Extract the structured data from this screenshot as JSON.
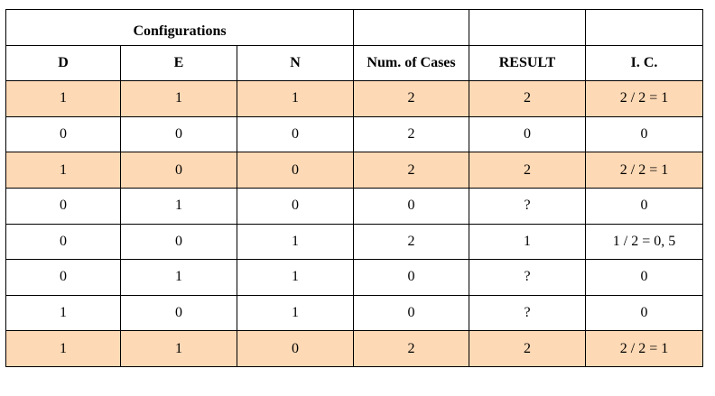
{
  "header": {
    "title": "Configurations",
    "columns": [
      "D",
      "E",
      "N",
      "Num. of Cases",
      "RESULT",
      "I. C."
    ]
  },
  "table": {
    "highlight_color": "#fdd9b5",
    "rows": [
      {
        "highlight": true,
        "cells": [
          "1",
          "1",
          "1",
          "2",
          "2",
          "2 / 2 = 1"
        ]
      },
      {
        "highlight": false,
        "cells": [
          "0",
          "0",
          "0",
          "2",
          "0",
          "0"
        ]
      },
      {
        "highlight": true,
        "cells": [
          "1",
          "0",
          "0",
          "2",
          "2",
          "2 / 2 = 1"
        ]
      },
      {
        "highlight": false,
        "cells": [
          "0",
          "1",
          "0",
          "0",
          "?",
          "0"
        ]
      },
      {
        "highlight": false,
        "cells": [
          "0",
          "0",
          "1",
          "2",
          "1",
          "1 / 2 = 0, 5"
        ]
      },
      {
        "highlight": false,
        "cells": [
          "0",
          "1",
          "1",
          "0",
          "?",
          "0"
        ]
      },
      {
        "highlight": false,
        "cells": [
          "1",
          "0",
          "1",
          "0",
          "?",
          "0"
        ]
      },
      {
        "highlight": true,
        "cells": [
          "1",
          "1",
          "0",
          "2",
          "2",
          "2 / 2 = 1"
        ]
      }
    ]
  }
}
